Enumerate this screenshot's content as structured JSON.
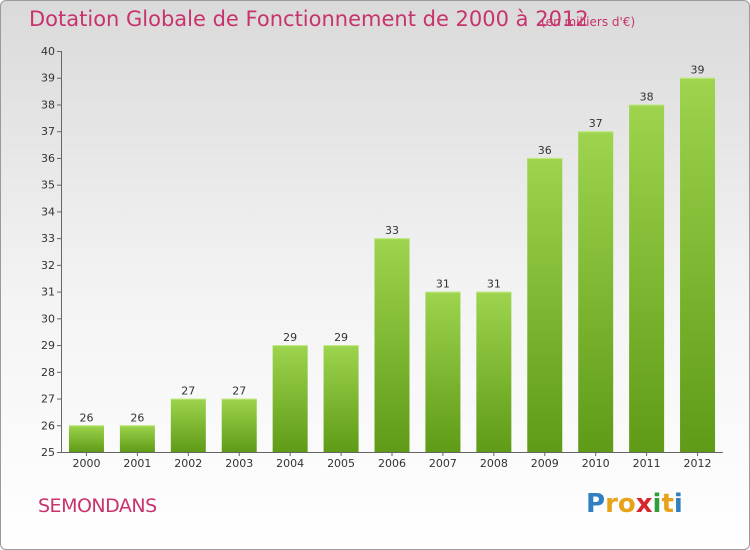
{
  "title": "Dotation Globale de Fonctionnement de 2000 à 2012",
  "subtitle": "(en milliers d'€)",
  "commune": "SEMONDANS",
  "logo": {
    "letters": [
      "P",
      "r",
      "o",
      "x",
      "i",
      "t",
      "i"
    ],
    "colors": [
      "#2f7fc1",
      "#e8a21a",
      "#e8a21a",
      "#d9262d",
      "#2f9e3d",
      "#e8a21a",
      "#2f7fc1"
    ]
  },
  "colors": {
    "bar_top": "#9ed44e",
    "bar_bottom": "#5f9b17",
    "text_accent": "#c8326e"
  },
  "chart_data": {
    "type": "bar",
    "title": "Dotation Globale de Fonctionnement de 2000 à 2012",
    "subtitle": "(en milliers d'€)",
    "xlabel": "",
    "ylabel": "",
    "categories": [
      "2000",
      "2001",
      "2002",
      "2003",
      "2004",
      "2005",
      "2006",
      "2007",
      "2008",
      "2009",
      "2010",
      "2011",
      "2012"
    ],
    "values": [
      26,
      26,
      27,
      27,
      29,
      29,
      33,
      31,
      31,
      36,
      37,
      38,
      39
    ],
    "ylim": [
      25,
      40
    ],
    "yticks": [
      25,
      26,
      27,
      28,
      29,
      30,
      31,
      32,
      33,
      34,
      35,
      36,
      37,
      38,
      39,
      40
    ],
    "grid": false,
    "data_labels": true
  }
}
